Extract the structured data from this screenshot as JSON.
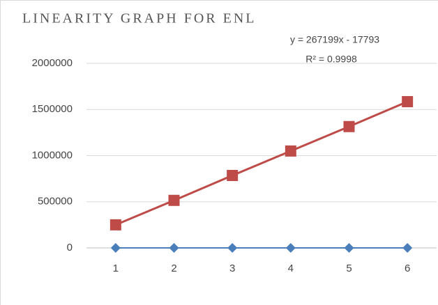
{
  "chart_data": {
    "type": "line",
    "title": "LINEARITY GRAPH FOR ENL",
    "annotations": [
      "y = 267199x - 17793",
      "R² = 0.9998"
    ],
    "categories": [
      "1",
      "2",
      "3",
      "4",
      "5",
      "6"
    ],
    "series": [
      {
        "color": "#4a7ebb",
        "marker": "diamond",
        "values": [
          0,
          0,
          0,
          0,
          0,
          0
        ]
      },
      {
        "color": "#be4b48",
        "marker": "square",
        "values": [
          250000,
          515000,
          785000,
          1050000,
          1315000,
          1585000
        ]
      }
    ],
    "ylim": [
      0,
      2000000
    ],
    "yticks": [
      0,
      500000,
      1000000,
      1500000,
      2000000
    ],
    "grid": true
  }
}
